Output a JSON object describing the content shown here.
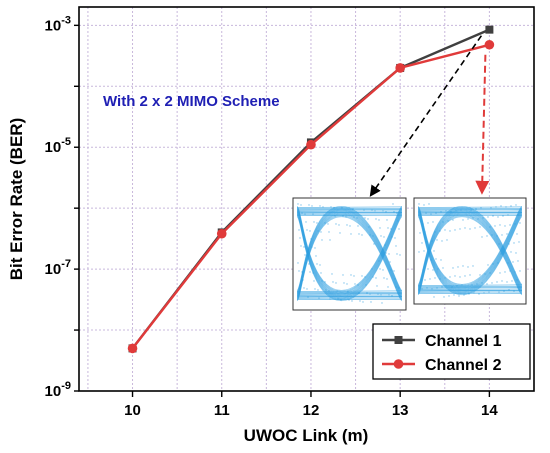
{
  "chart_data": {
    "type": "line",
    "xlabel": "UWOC Link (m)",
    "ylabel": "Bit Error Rate (BER)",
    "x": [
      10,
      11,
      12,
      13,
      14
    ],
    "xlim": [
      9.4,
      14.5
    ],
    "ylim": [
      1e-09,
      0.002
    ],
    "yscale": "log",
    "xticks": [
      "10",
      "11",
      "12",
      "13",
      "14"
    ],
    "yticks": [
      {
        "value": 1e-09,
        "base": "10",
        "exp": "-9"
      },
      {
        "value": 1e-07,
        "base": "10",
        "exp": "-7"
      },
      {
        "value": 1e-05,
        "base": "10",
        "exp": "-5"
      },
      {
        "value": 0.001,
        "base": "10",
        "exp": "-3"
      }
    ],
    "grid": true,
    "legend_position": "bottom-right",
    "annotation": "With 2 x 2 MIMO Scheme",
    "annotation_color": "#1f1fb4",
    "series": [
      {
        "name": "Channel 1",
        "color": "#404040",
        "marker": "square",
        "values": [
          5e-09,
          4e-07,
          1.2e-05,
          0.0002,
          0.00085
        ]
      },
      {
        "name": "Channel 2",
        "color": "#e03a3a",
        "marker": "circle",
        "values": [
          5e-09,
          3.8e-07,
          1.1e-05,
          0.0002,
          0.00048
        ]
      }
    ],
    "insets": [
      {
        "type": "eye-diagram",
        "color": "#2e9fe0",
        "points_from_series": "Channel 1"
      },
      {
        "type": "eye-diagram",
        "color": "#2e9fe0",
        "points_from_series": "Channel 2"
      }
    ]
  }
}
